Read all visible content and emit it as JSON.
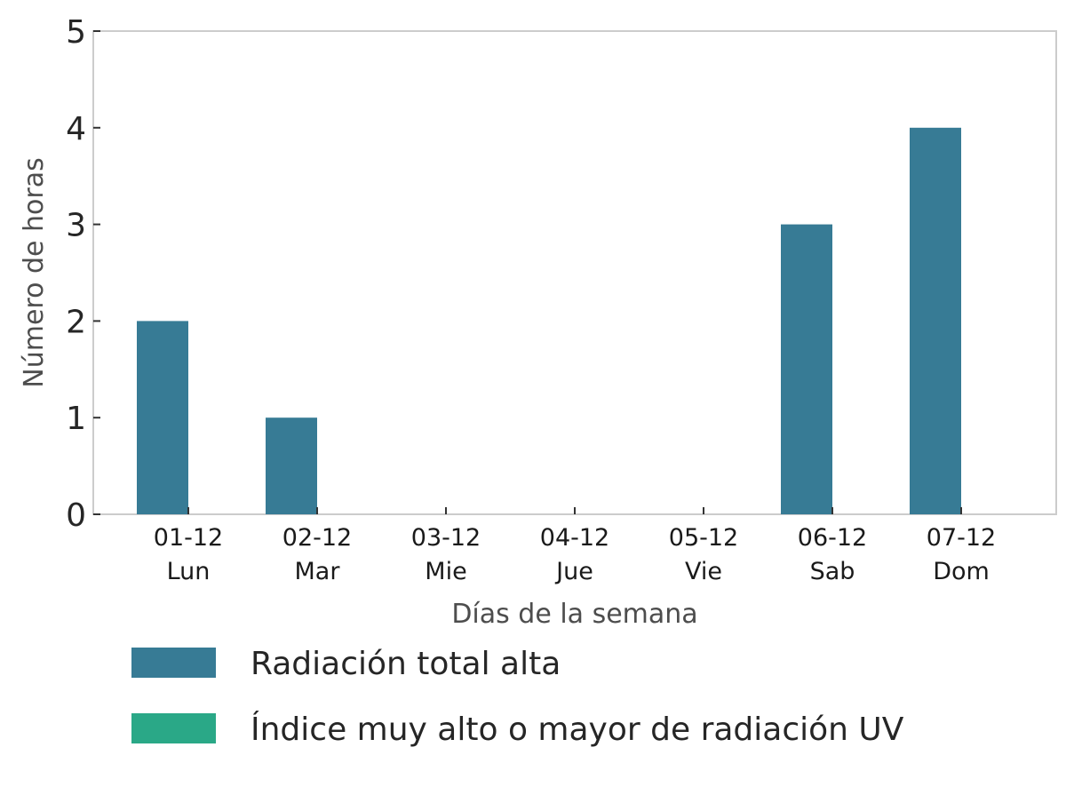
{
  "chart_data": {
    "type": "bar",
    "categories": [
      {
        "date": "01-12",
        "day": "Lun"
      },
      {
        "date": "02-12",
        "day": "Mar"
      },
      {
        "date": "03-12",
        "day": "Mie"
      },
      {
        "date": "04-12",
        "day": "Jue"
      },
      {
        "date": "05-12",
        "day": "Vie"
      },
      {
        "date": "06-12",
        "day": "Sab"
      },
      {
        "date": "07-12",
        "day": "Dom"
      }
    ],
    "series": [
      {
        "name": "Radiación total alta",
        "color": "#377b95",
        "values": [
          2,
          1,
          0,
          0,
          0,
          3,
          4
        ]
      },
      {
        "name": "Índice muy alto o mayor de radiación UV",
        "color": "#2aa887",
        "values": [
          0,
          0,
          0,
          0,
          0,
          0,
          0
        ]
      }
    ],
    "title": "",
    "xlabel": "Días de la semana",
    "ylabel": "Número de horas",
    "ylim": [
      0,
      5
    ],
    "yticks": [
      "0",
      "1",
      "2",
      "3",
      "4",
      "5"
    ],
    "grid": false,
    "legend_position": "bottom"
  }
}
